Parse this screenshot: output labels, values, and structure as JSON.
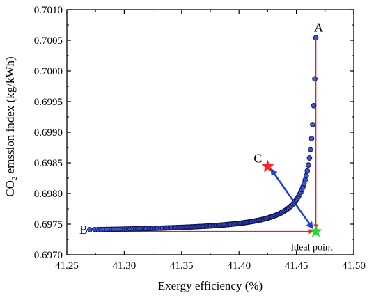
{
  "chart_data": {
    "type": "scatter",
    "xlabel": "Exergy efficiency (%)",
    "ylabel": {
      "prefix": "CO",
      "subscript": "2",
      "suffix": " emssion index (kg/kWh)"
    },
    "xlim": [
      41.25,
      41.5
    ],
    "ylim": [
      0.697,
      0.701
    ],
    "xticks": [
      "41.25",
      "41.30",
      "41.35",
      "41.40",
      "41.45",
      "41.50"
    ],
    "yticks": [
      "0.6970",
      "0.6975",
      "0.6980",
      "0.6985",
      "0.6990",
      "0.6995",
      "0.7000",
      "0.7005",
      "0.7010"
    ],
    "grid": false,
    "pareto_front": {
      "start": [
        41.27,
        0.69741
      ],
      "end": [
        41.467,
        0.70054
      ],
      "point_count": 160,
      "fill_color": "#3a55d6",
      "edge_color": "#0b0f4a"
    },
    "points": {
      "A": {
        "label": "A",
        "x": 41.467,
        "y": 0.70054
      },
      "B": {
        "label": "B",
        "x": 41.27,
        "y": 0.69741
      },
      "C": {
        "label": "C",
        "x": 41.425,
        "y": 0.69844,
        "marker": "star",
        "color": "#ff2020"
      },
      "ideal": {
        "label": "Ideal point",
        "x": 41.467,
        "y": 0.69738,
        "marker": "star",
        "color": "#22dd22"
      }
    },
    "annotation_colors": {
      "projection_lines": "#e8201c",
      "distance_arrow": "#1f3fe0"
    }
  }
}
